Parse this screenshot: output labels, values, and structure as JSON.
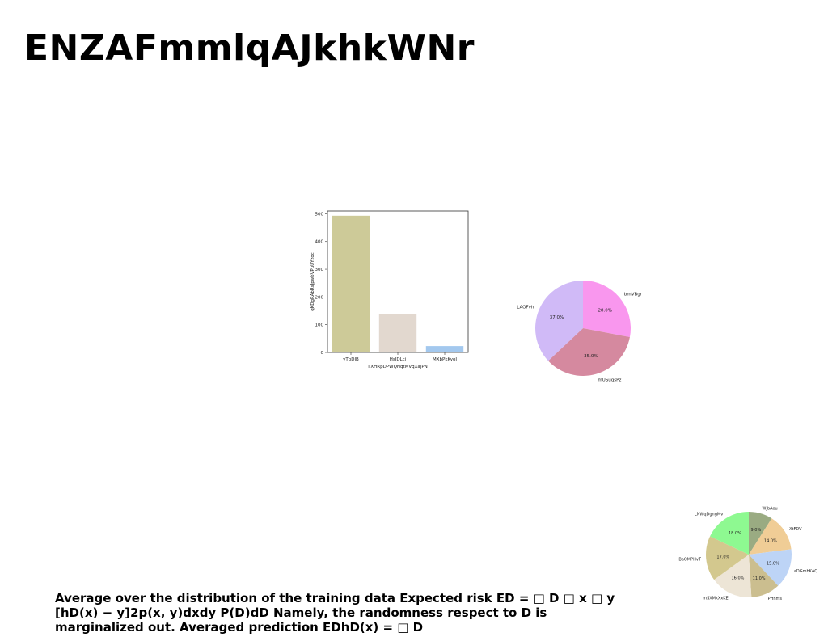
{
  "page": {
    "title": "ENZAFmmlqAJkhkWNr",
    "caption": "Average over the distribution of the training data Expected risk ED = □ D □ x □ y [hD(x) − y]2p(x, y)dxdy P(D)dD Namely, the randomness respect to D is marginalized out. Averaged prediction EDhD(x) = □ D"
  },
  "chart_data": [
    {
      "type": "bar",
      "categories": [
        "yTbDlB",
        "HsJDLcj",
        "MXbPkKyoI"
      ],
      "values": [
        493,
        137,
        23
      ],
      "colors": [
        "#cdca98",
        "#e2d8cf",
        "#a3c8ee"
      ],
      "xlabel": "IiXHRpDPWQNqtMVqXajPN",
      "ylabel": "qKDgRAbRsJpwbVPuUYzoc",
      "ylim": [
        0,
        510
      ],
      "yticks": [
        0,
        100,
        200,
        300,
        400,
        500
      ]
    },
    {
      "type": "pie",
      "labels": [
        "bmVBgr",
        "mUSuqsPz",
        "LAOFvh"
      ],
      "values": [
        28.0,
        35.0,
        37.0
      ],
      "colors": [
        "#f997ee",
        "#d5899f",
        "#d0baf7"
      ],
      "percent_labels": [
        "28.0%",
        "35.0%",
        "37.0%"
      ]
    },
    {
      "type": "pie",
      "labels": [
        "WJbAou",
        "XtFDV",
        "aDGmbKAQ",
        "PHhms",
        "mSXMkXxKE",
        "BaQMPHvT",
        "LNWqDgngMv"
      ],
      "values": [
        9.0,
        14.0,
        15.0,
        11.0,
        16.0,
        17.0,
        18.0
      ],
      "colors": [
        "#9aab82",
        "#f0cd96",
        "#bdd4f6",
        "#cbbe8f",
        "#ede5d6",
        "#d3c88e",
        "#8ef991"
      ],
      "percent_labels": [
        "9.0%",
        "14.0%",
        "15.0%",
        "11.0%",
        "16.0%",
        "17.0%",
        "18.0%"
      ]
    }
  ]
}
